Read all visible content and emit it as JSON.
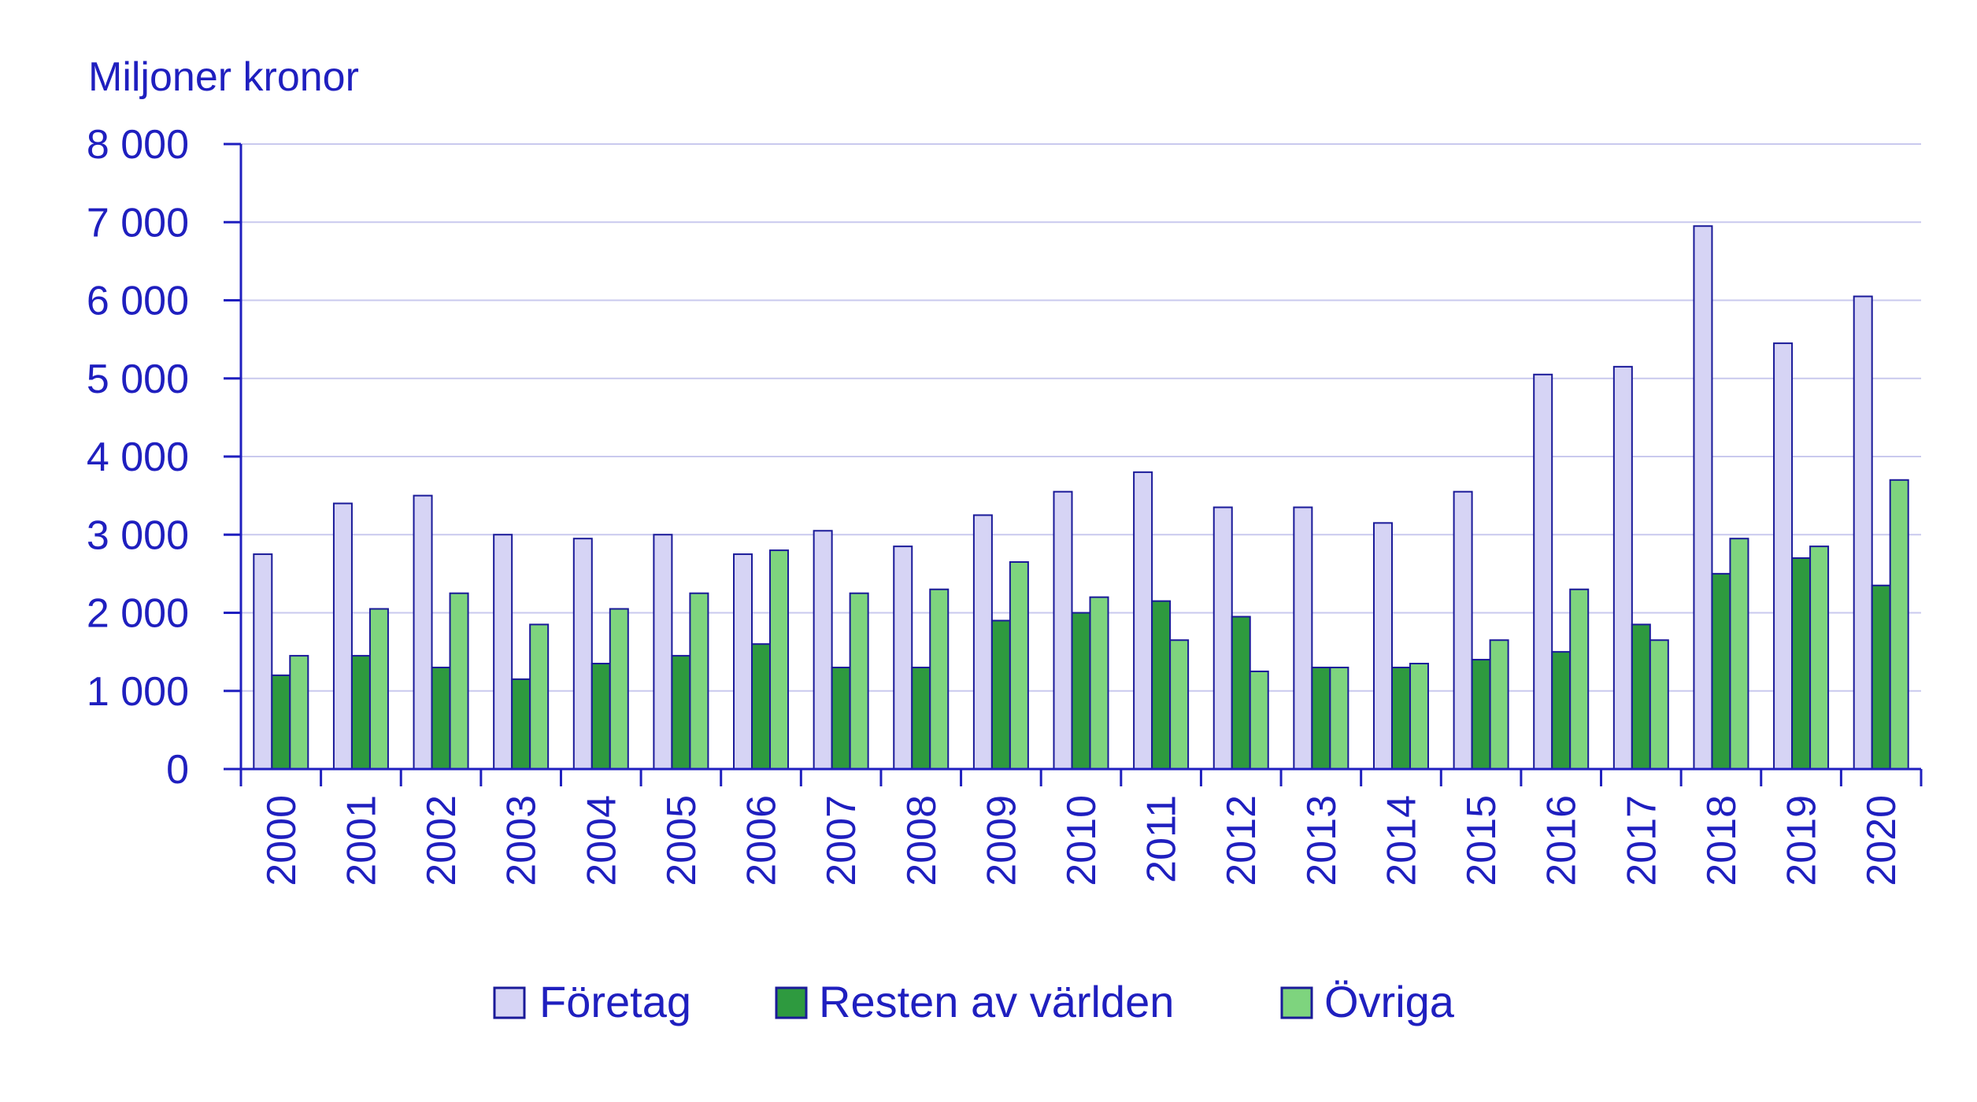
{
  "chart_data": {
    "type": "bar",
    "ylabel": "Miljoner kronor",
    "ylim": [
      0,
      8000
    ],
    "yticks": [
      "0",
      "1 000",
      "2 000",
      "3 000",
      "4 000",
      "5 000",
      "6 000",
      "7 000",
      "8 000"
    ],
    "grid": true,
    "legend_position": "bottom",
    "categories": [
      "2000",
      "2001",
      "2002",
      "2003",
      "2004",
      "2005",
      "2006",
      "2007",
      "2008",
      "2009",
      "2010",
      "2011",
      "2012",
      "2013",
      "2014",
      "2015",
      "2016",
      "2017",
      "2018",
      "2019",
      "2020"
    ],
    "series": [
      {
        "name": "Företag",
        "color": "#d6d4f5",
        "values": [
          2750,
          3400,
          3500,
          3000,
          2950,
          3000,
          2750,
          3050,
          2850,
          3250,
          3550,
          3800,
          3350,
          3350,
          3150,
          3550,
          5050,
          5150,
          6950,
          5450,
          6050
        ]
      },
      {
        "name": "Resten av världen",
        "color": "#2e9a3f",
        "values": [
          1200,
          1450,
          1300,
          1150,
          1350,
          1450,
          1600,
          1300,
          1300,
          1900,
          2000,
          2150,
          1950,
          1300,
          1300,
          1400,
          1500,
          1850,
          2500,
          2700,
          2350
        ]
      },
      {
        "name": "Övriga",
        "color": "#7ed47e",
        "values": [
          1450,
          2050,
          2250,
          1850,
          2050,
          2250,
          2800,
          2250,
          2300,
          2650,
          2200,
          1650,
          1250,
          1300,
          1350,
          1650,
          2300,
          1650,
          2950,
          2850,
          3700
        ]
      }
    ],
    "colors": {
      "text": "#1f1fbf",
      "grid": "#c9c9ee",
      "axis": "#1f1fbf",
      "bar_stroke": "#1a1a99"
    }
  }
}
